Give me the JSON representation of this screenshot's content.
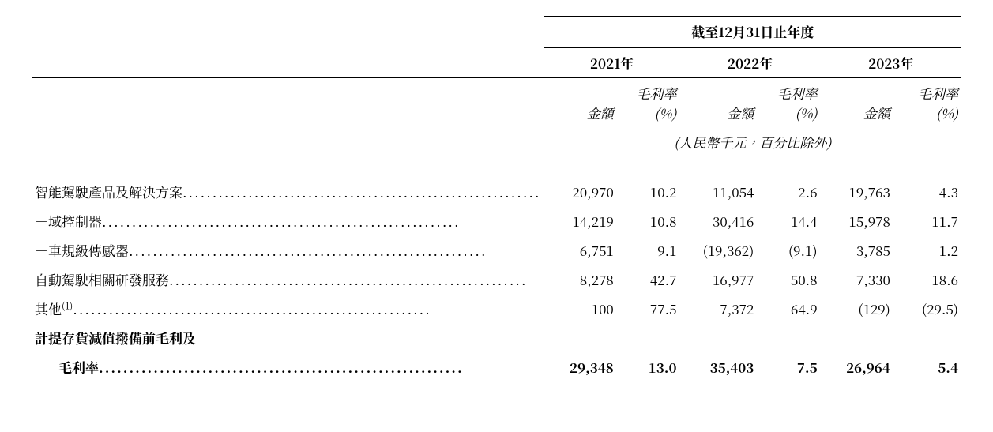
{
  "header": {
    "period_label": "截至12月31日止年度",
    "years": [
      "2021年",
      "2022年",
      "2023年"
    ],
    "subheads": {
      "amount": "金額",
      "margin": "毛利率(%)"
    },
    "units_note": "(人民幣千元，百分比除外)"
  },
  "rows": [
    {
      "label": "智能駕駛產品及解決方案",
      "bold": false,
      "indent": false,
      "leaders": true,
      "vals": [
        "20,970",
        "10.2",
        "11,054",
        "2.6",
        "19,763",
        "4.3"
      ]
    },
    {
      "label": "－域控制器",
      "bold": false,
      "indent": false,
      "leaders": true,
      "vals": [
        "14,219",
        "10.8",
        "30,416",
        "14.4",
        "15,978",
        "11.7"
      ]
    },
    {
      "label": "－車規級傳感器",
      "bold": false,
      "indent": false,
      "leaders": true,
      "vals": [
        "6,751",
        "9.1",
        "(19,362)",
        "(9.1)",
        "3,785",
        "1.2"
      ]
    },
    {
      "label": "自動駕駛相關研發服務",
      "bold": false,
      "indent": false,
      "leaders": true,
      "vals": [
        "8,278",
        "42.7",
        "16,977",
        "50.8",
        "7,330",
        "18.6"
      ]
    },
    {
      "label_html": "其他<sup>(1)</sup>",
      "bold": false,
      "indent": false,
      "leaders": true,
      "vals": [
        "100",
        "77.5",
        "7,372",
        "64.9",
        "(129)",
        "(29.5)"
      ]
    },
    {
      "label": "計提存貨減值撥備前毛利及",
      "bold": true,
      "indent": false,
      "leaders": false,
      "vals": [
        "",
        "",
        "",
        "",
        "",
        ""
      ]
    },
    {
      "label": "毛利率",
      "bold": true,
      "indent": true,
      "leaders": true,
      "vals": [
        "29,348",
        "13.0",
        "35,403",
        "7.5",
        "26,964",
        "5.4"
      ]
    }
  ]
}
